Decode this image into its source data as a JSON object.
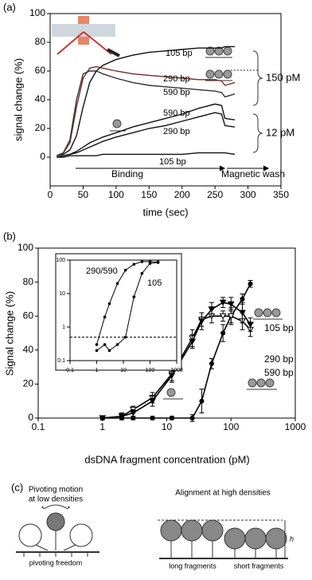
{
  "chart_data": [
    {
      "type": "line",
      "label": "(a)",
      "xlabel": "time (sec)",
      "ylabel": "signal change (%)",
      "xlim": [
        0,
        350
      ],
      "ylim": [
        -20,
        100
      ],
      "xticks": [
        0,
        50,
        100,
        150,
        200,
        250,
        300,
        350
      ],
      "yticks": [
        0,
        20,
        40,
        60,
        80,
        100
      ],
      "x": [
        10,
        20,
        30,
        40,
        50,
        60,
        70,
        80,
        100,
        125,
        150,
        175,
        200,
        225,
        250,
        260,
        265,
        280
      ],
      "series": [
        {
          "name": "105 bp",
          "color": "#111111",
          "values": [
            1,
            2,
            5,
            15,
            35,
            52,
            60,
            64,
            68,
            71,
            73,
            74,
            75,
            76,
            76,
            76,
            77,
            77
          ]
        },
        {
          "name": "290 bp",
          "color": "#7a2a2a",
          "values": [
            1,
            3,
            10,
            35,
            55,
            62,
            63,
            62,
            60,
            58,
            57,
            56,
            55,
            54,
            54,
            53,
            50,
            52
          ]
        },
        {
          "name": "590 bp",
          "color": "#333333",
          "values": [
            1,
            3,
            12,
            40,
            58,
            60,
            60,
            58,
            55,
            52,
            50,
            49,
            48,
            47,
            46,
            45,
            42,
            44
          ]
        },
        {
          "name": "590 bp",
          "color": "#111111",
          "values": [
            0,
            1,
            2,
            4,
            7,
            10,
            12,
            14,
            17,
            21,
            24,
            27,
            30,
            34,
            37,
            36,
            27,
            26
          ]
        },
        {
          "name": "290 bp",
          "color": "#111111",
          "values": [
            0,
            1,
            2,
            3,
            5,
            7,
            9,
            11,
            14,
            17,
            20,
            22,
            25,
            28,
            31,
            30,
            22,
            21
          ]
        },
        {
          "name": "105 bp",
          "color": "#111111",
          "values": [
            0,
            0,
            1,
            1,
            1,
            1,
            1,
            2,
            2,
            2,
            2,
            2,
            2,
            3,
            3,
            3,
            3,
            2
          ]
        }
      ],
      "annotations": [
        "150 pM",
        "12 pM",
        "Binding",
        "Magnetic wash"
      ]
    },
    {
      "type": "scatter",
      "label": "(b)",
      "xlabel": "dsDNA fragment concentration (pM)",
      "ylabel": "Signal change (%)",
      "xlog": true,
      "xlim": [
        0.1,
        1000
      ],
      "ylim": [
        0,
        100
      ],
      "xticks": [
        0.1,
        1,
        10,
        100,
        1000
      ],
      "yticks": [
        0,
        20,
        40,
        60,
        80,
        100
      ],
      "x": [
        1,
        2,
        3,
        6,
        12,
        25,
        35,
        50,
        75,
        100,
        150,
        200
      ],
      "series": [
        {
          "name": "105 bp",
          "color": "#000000",
          "values": [
            0,
            0,
            0,
            0,
            0,
            0,
            10,
            32,
            50,
            60,
            70,
            79
          ],
          "errors": [
            1,
            1,
            1,
            1,
            1,
            2,
            7,
            3,
            5,
            4,
            3,
            2
          ]
        },
        {
          "name": "290 bp",
          "color": "#000000",
          "values": [
            0,
            1,
            5,
            12,
            26,
            47,
            58,
            60,
            60,
            60,
            57,
            52
          ],
          "errors": [
            1,
            2,
            2,
            3,
            4,
            5,
            4,
            4,
            3,
            5,
            5,
            4
          ]
        },
        {
          "name": "590 bp",
          "color": "#000000",
          "values": [
            0,
            1,
            3,
            10,
            25,
            45,
            57,
            64,
            68,
            67,
            62,
            55
          ],
          "errors": [
            1,
            1,
            2,
            3,
            4,
            4,
            5,
            4,
            3,
            4,
            6,
            4
          ]
        }
      ],
      "inset": {
        "xlim": [
          0.1,
          1000
        ],
        "ylim": [
          0.1,
          100
        ],
        "xticks": [
          0.1,
          1,
          10,
          100,
          1000
        ],
        "yticks": [
          0.1,
          1,
          10,
          100
        ],
        "hline": 0.5,
        "series": [
          {
            "name": "290/590",
            "x": [
              1,
              2,
              3,
              6,
              12,
              25,
              50,
              100,
              200
            ],
            "values": [
              0.3,
              2,
              5,
              20,
              50,
              75,
              90,
              90,
              88
            ]
          },
          {
            "name": "105",
            "x": [
              1,
              2,
              3,
              6,
              12,
              25,
              50,
              100,
              200
            ],
            "values": [
              0.2,
              0.3,
              0.2,
              0.3,
              0.5,
              8,
              40,
              80,
              85
            ]
          }
        ]
      }
    }
  ],
  "diagram": {
    "label": "(c)",
    "left_title": [
      "Pivoting motion",
      "at low densities"
    ],
    "left_caption": "pivoting   freedom",
    "right_title": "Alignment at high densities",
    "right_captions": [
      "long fragments",
      "short fragments"
    ],
    "height_label": "h"
  }
}
